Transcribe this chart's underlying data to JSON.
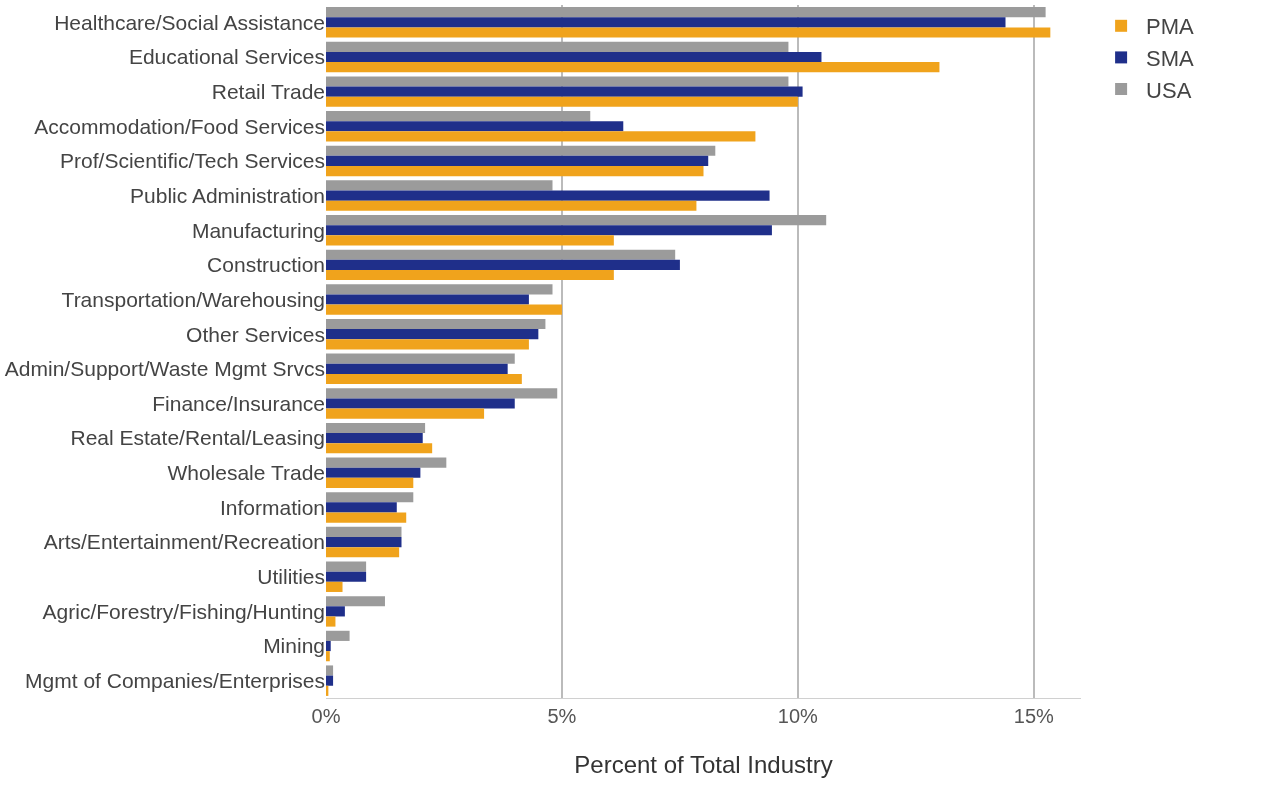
{
  "chart_data": {
    "type": "bar",
    "orientation": "horizontal",
    "xlabel": "Percent of Total Industry",
    "categories": [
      "Healthcare/Social Assistance",
      "Educational Services",
      "Retail Trade",
      "Accommodation/Food Services",
      "Prof/Scientific/Tech Services",
      "Public Administration",
      "Manufacturing",
      "Construction",
      "Transportation/Warehousing",
      "Other Services",
      "Admin/Support/Waste Mgmt Srvcs",
      "Finance/Insurance",
      "Real Estate/Rental/Leasing",
      "Wholesale Trade",
      "Information",
      "Arts/Entertainment/Recreation",
      "Utilities",
      "Agric/Forestry/Fishing/Hunting",
      "Mining",
      "Mgmt of Companies/Enterprises"
    ],
    "series": [
      {
        "name": "PMA",
        "color": "#f0a31c",
        "values": [
          15.35,
          13.0,
          10.0,
          9.1,
          8.0,
          7.85,
          6.1,
          6.1,
          5.0,
          4.3,
          4.15,
          3.35,
          2.25,
          1.85,
          1.7,
          1.55,
          0.35,
          0.2,
          0.08,
          0.05
        ]
      },
      {
        "name": "SMA",
        "color": "#1f2f8a",
        "values": [
          14.4,
          10.5,
          10.1,
          6.3,
          8.1,
          9.4,
          9.45,
          7.5,
          4.3,
          4.5,
          3.85,
          4.0,
          2.05,
          2.0,
          1.5,
          1.6,
          0.85,
          0.4,
          0.1,
          0.15
        ]
      },
      {
        "name": "USA",
        "color": "#9b9b9b",
        "values": [
          15.25,
          9.8,
          9.8,
          5.6,
          8.25,
          4.8,
          10.6,
          7.4,
          4.8,
          4.65,
          4.0,
          4.9,
          2.1,
          2.55,
          1.85,
          1.6,
          0.85,
          1.25,
          0.5,
          0.15
        ]
      }
    ],
    "xlim": [
      0,
      16
    ],
    "xticks": [
      {
        "value": 0,
        "label": "0%"
      },
      {
        "value": 5,
        "label": "5%"
      },
      {
        "value": 10,
        "label": "10%"
      },
      {
        "value": 15,
        "label": "15%"
      }
    ],
    "grid": "x",
    "legend": "top right"
  }
}
